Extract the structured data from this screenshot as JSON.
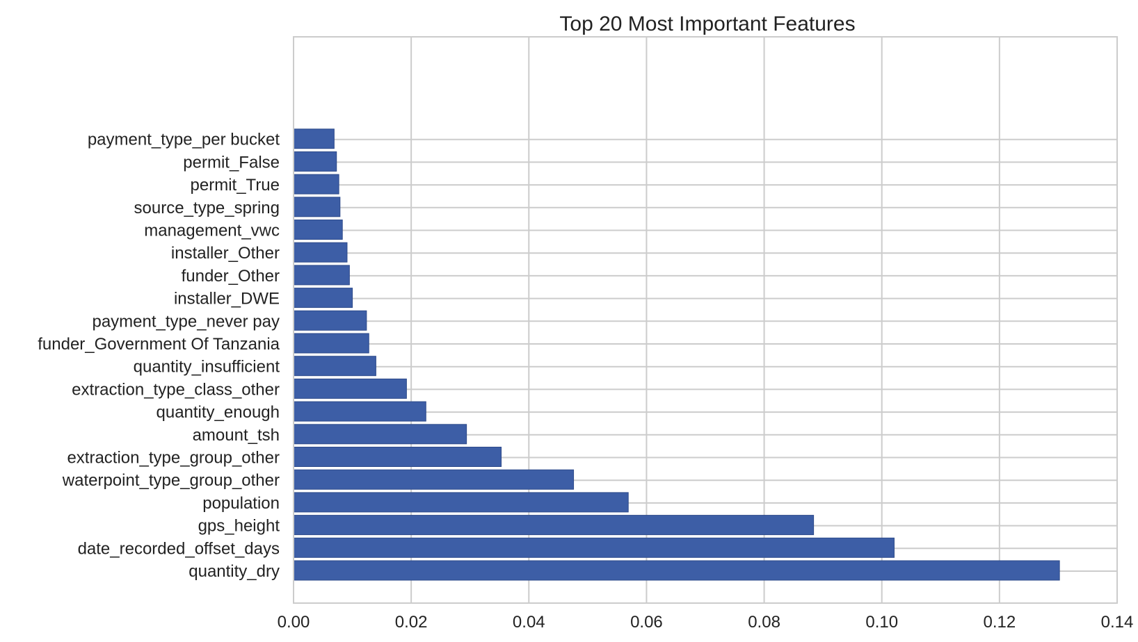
{
  "colors": {
    "bar": "#3d5ea6",
    "bar_edge": "#2d4a8a",
    "grid": "#cccccc",
    "frame": "#cccccc",
    "background": "#ffffff",
    "text": "#222222"
  },
  "chart_data": {
    "type": "bar",
    "orientation": "horizontal",
    "title": "Top 20 Most Important Features",
    "xlabel": "",
    "ylabel": "",
    "xlim": [
      0.0,
      0.14
    ],
    "x_ticks": [
      0.0,
      0.02,
      0.04,
      0.06,
      0.08,
      0.1,
      0.12,
      0.14
    ],
    "x_tick_labels": [
      "0.00",
      "0.02",
      "0.04",
      "0.06",
      "0.08",
      "0.10",
      "0.12",
      "0.14"
    ],
    "grid": true,
    "categories": [
      "quantity_dry",
      "date_recorded_offset_days",
      "gps_height",
      "population",
      "waterpoint_type_group_other",
      "extraction_type_group_other",
      "amount_tsh",
      "quantity_enough",
      "extraction_type_class_other",
      "quantity_insufficient",
      "funder_Government Of Tanzania",
      "payment_type_never pay",
      "installer_DWE",
      "funder_Other",
      "installer_Other",
      "management_vwc",
      "source_type_spring",
      "permit_True",
      "permit_False",
      "payment_type_per bucket"
    ],
    "values": [
      0.1302,
      0.1021,
      0.0884,
      0.0569,
      0.0476,
      0.0353,
      0.0294,
      0.0225,
      0.0192,
      0.014,
      0.0128,
      0.0124,
      0.01,
      0.0095,
      0.0091,
      0.0083,
      0.0079,
      0.0077,
      0.0073,
      0.0069
    ]
  }
}
